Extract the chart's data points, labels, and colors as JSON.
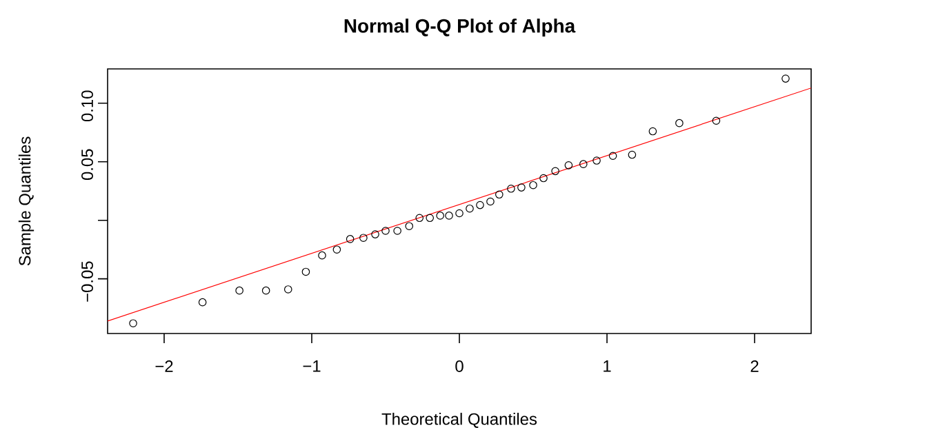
{
  "chart_data": {
    "type": "scatter",
    "title": "Normal Q-Q Plot of Alpha",
    "xlabel": "Theoretical Quantiles",
    "ylabel": "Sample Quantiles",
    "xlim": [
      -2.383,
      2.383
    ],
    "ylim": [
      -0.0967,
      0.1293
    ],
    "xticks": [
      {
        "value": -2,
        "label": "−2"
      },
      {
        "value": -1,
        "label": "−1"
      },
      0,
      1,
      2
    ],
    "yticks": [
      {
        "value": -0.05,
        "label": "−0.05"
      },
      {
        "value": 0,
        "label": null
      },
      {
        "value": 0.05,
        "label": "0.05"
      },
      {
        "value": 0.1,
        "label": "0.10"
      }
    ],
    "marker": "circle",
    "grid": false,
    "series": [
      {
        "color": "#000000",
        "x": [
          -2.21,
          -1.74,
          -1.49,
          -1.31,
          -1.16,
          -1.04,
          -0.93,
          -0.83,
          -0.74,
          -0.65,
          -0.57,
          -0.5,
          -0.42,
          -0.34,
          -0.27,
          -0.2,
          -0.13,
          -0.07,
          0.0,
          0.07,
          0.14,
          0.21,
          0.27,
          0.35,
          0.42,
          0.5,
          0.57,
          0.65,
          0.74,
          0.84,
          0.93,
          1.04,
          1.17,
          1.31,
          1.49,
          1.74,
          2.21
        ],
        "values": [
          -0.088,
          -0.07,
          -0.06,
          -0.06,
          -0.059,
          -0.044,
          -0.03,
          -0.025,
          -0.016,
          -0.015,
          -0.012,
          -0.009,
          -0.009,
          -0.005,
          0.002,
          0.002,
          0.004,
          0.004,
          0.006,
          0.01,
          0.013,
          0.016,
          0.022,
          0.027,
          0.028,
          0.03,
          0.036,
          0.042,
          0.047,
          0.048,
          0.051,
          0.055,
          0.056,
          0.076,
          0.083,
          0.085,
          0.121
        ]
      },
      {
        "type": "line",
        "marker": "none",
        "color": "#ff0000",
        "x": [
          -2.383,
          2.383
        ],
        "values": [
          -0.086,
          0.113
        ]
      }
    ]
  }
}
